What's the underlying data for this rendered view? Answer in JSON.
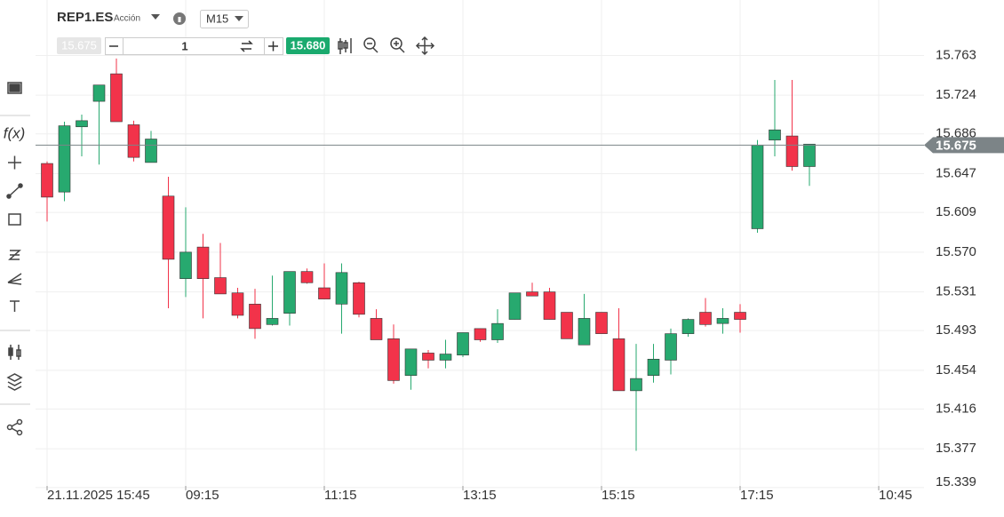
{
  "toolbar": {
    "symbol": "REP1.ES",
    "kind": "Acción",
    "timeframe": "M15",
    "bid": "15.675",
    "quantity": "1",
    "ask": "15.680"
  },
  "chart_data": {
    "type": "candlestick",
    "up_color": "#27a96f",
    "down_color": "#f2334a",
    "categories": [
      "21.11.2025 15:45",
      null,
      null,
      null,
      null,
      null,
      null,
      null,
      "09:15",
      null,
      null,
      null,
      null,
      null,
      null,
      null,
      "11:15",
      null,
      null,
      null,
      null,
      null,
      null,
      null,
      "13:15",
      null,
      null,
      null,
      null,
      null,
      null,
      null,
      "15:15",
      null,
      null,
      null,
      null,
      null,
      null,
      null,
      "17:15",
      null,
      null,
      null,
      null,
      null,
      null,
      null,
      "10:45"
    ],
    "open": [
      15.657,
      15.629,
      15.693,
      15.718,
      15.745,
      15.695,
      15.658,
      15.625,
      15.544,
      15.575,
      15.545,
      15.53,
      15.519,
      15.499,
      15.51,
      15.551,
      15.535,
      15.519,
      15.54,
      15.505,
      15.485,
      15.449,
      15.471,
      15.464,
      15.469,
      15.495,
      15.484,
      15.504,
      15.531,
      15.531,
      15.511,
      15.479,
      15.511,
      15.485,
      15.434,
      15.449,
      15.464,
      15.49,
      15.511,
      15.5,
      15.511,
      15.593,
      15.68,
      15.684,
      15.654,
      null,
      null,
      null,
      null
    ],
    "high": [
      15.659,
      15.698,
      15.705,
      15.734,
      15.76,
      15.699,
      15.689,
      15.644,
      15.614,
      15.588,
      15.579,
      15.535,
      15.534,
      15.547,
      15.551,
      15.554,
      15.559,
      15.559,
      15.541,
      15.514,
      15.499,
      15.475,
      15.474,
      15.484,
      15.491,
      15.495,
      15.514,
      15.53,
      15.54,
      15.535,
      15.511,
      15.529,
      15.511,
      15.515,
      15.48,
      15.48,
      15.495,
      15.505,
      15.525,
      15.515,
      15.519,
      15.68,
      15.739,
      15.739,
      15.676,
      null,
      null,
      null,
      null
    ],
    "low": [
      15.6,
      15.62,
      15.664,
      15.656,
      15.698,
      15.659,
      15.658,
      15.515,
      15.526,
      15.505,
      15.529,
      15.505,
      15.485,
      15.498,
      15.498,
      15.539,
      15.524,
      15.49,
      15.506,
      15.484,
      15.441,
      15.435,
      15.456,
      15.456,
      15.467,
      15.482,
      15.481,
      15.504,
      15.527,
      15.504,
      15.485,
      15.479,
      15.49,
      15.434,
      15.375,
      15.442,
      15.45,
      15.487,
      15.497,
      15.49,
      15.491,
      15.589,
      15.664,
      15.65,
      15.635,
      null,
      null,
      null,
      null
    ],
    "close": [
      15.624,
      15.694,
      15.699,
      15.734,
      15.698,
      15.663,
      15.681,
      15.563,
      15.57,
      15.544,
      15.529,
      15.508,
      15.495,
      15.505,
      15.551,
      15.54,
      15.524,
      15.55,
      15.509,
      15.484,
      15.444,
      15.475,
      15.464,
      15.47,
      15.491,
      15.484,
      15.5,
      15.53,
      15.527,
      15.504,
      15.485,
      15.505,
      15.49,
      15.434,
      15.446,
      15.465,
      15.49,
      15.504,
      15.499,
      15.505,
      15.504,
      15.675,
      15.69,
      15.654,
      15.676,
      null,
      null,
      null,
      null
    ],
    "ylim": [
      15.338,
      15.8
    ],
    "yticks": [
      15.339,
      15.377,
      15.416,
      15.454,
      15.493,
      15.531,
      {
        "value": 15.57,
        "label": "15.570"
      },
      15.609,
      15.647,
      15.686,
      15.724,
      15.763
    ],
    "last_price": 15.675,
    "grid": true
  }
}
